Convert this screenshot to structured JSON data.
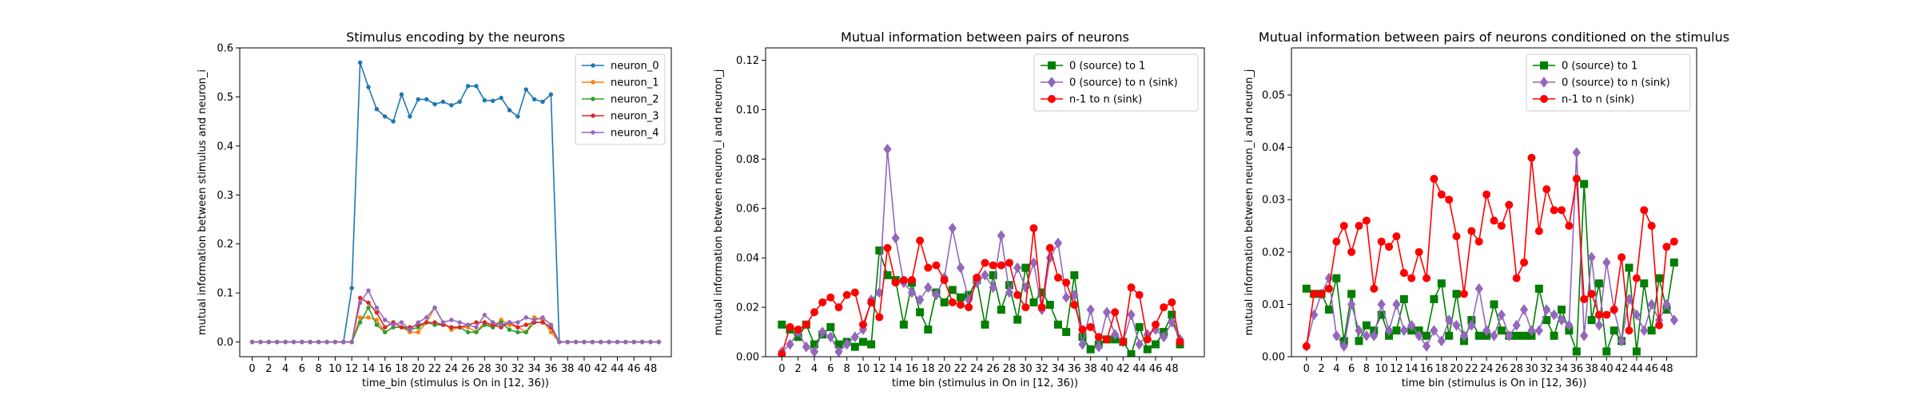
{
  "chart_data": [
    {
      "type": "line",
      "title": "Stimulus encoding by the neurons",
      "xlabel": "time_bin (stimulus is On in [12, 36))",
      "ylabel": "mutual information between stimulus and neuron_i",
      "xlim": [
        -1.5,
        50.5
      ],
      "ylim": [
        -0.03,
        0.6
      ],
      "xticks": [
        0,
        2,
        4,
        6,
        8,
        10,
        12,
        14,
        16,
        18,
        20,
        22,
        24,
        26,
        28,
        30,
        32,
        34,
        36,
        38,
        40,
        42,
        44,
        46,
        48
      ],
      "yticks": [
        0.0,
        0.1,
        0.2,
        0.3,
        0.4,
        0.5,
        0.6
      ],
      "ytick_labels": [
        "0.0",
        "0.1",
        "0.2",
        "0.3",
        "0.4",
        "0.5",
        "0.6"
      ],
      "grid": false,
      "legend_position": "top-right",
      "x": [
        0,
        1,
        2,
        3,
        4,
        5,
        6,
        7,
        8,
        9,
        10,
        11,
        12,
        13,
        14,
        15,
        16,
        17,
        18,
        19,
        20,
        21,
        22,
        23,
        24,
        25,
        26,
        27,
        28,
        29,
        30,
        31,
        32,
        33,
        34,
        35,
        36,
        37,
        38,
        39,
        40,
        41,
        42,
        43,
        44,
        45,
        46,
        47,
        48,
        49
      ],
      "series": [
        {
          "name": "neuron_0",
          "color": "#1f77b4",
          "marker": "point",
          "values": [
            0,
            0,
            0,
            0,
            0,
            0,
            0,
            0,
            0,
            0,
            0,
            0,
            0.11,
            0.57,
            0.52,
            0.475,
            0.46,
            0.45,
            0.505,
            0.46,
            0.495,
            0.495,
            0.485,
            0.49,
            0.483,
            0.49,
            0.522,
            0.522,
            0.493,
            0.492,
            0.498,
            0.473,
            0.46,
            0.515,
            0.495,
            0.49,
            0.505,
            0,
            0,
            0,
            0,
            0,
            0,
            0,
            0,
            0,
            0,
            0,
            0,
            0
          ]
        },
        {
          "name": "neuron_1",
          "color": "#ff7f0e",
          "marker": "point",
          "values": [
            0,
            0,
            0,
            0,
            0,
            0,
            0,
            0,
            0,
            0,
            0,
            0,
            0,
            0.05,
            0.05,
            0.045,
            0.02,
            0.03,
            0.03,
            0.02,
            0.02,
            0.04,
            0.07,
            0.04,
            0.025,
            0.03,
            0.03,
            0.02,
            0.04,
            0.03,
            0.045,
            0.035,
            0.03,
            0.02,
            0.05,
            0.045,
            0.02,
            0,
            0,
            0,
            0,
            0,
            0,
            0,
            0,
            0,
            0,
            0,
            0,
            0
          ]
        },
        {
          "name": "neuron_2",
          "color": "#2ca02c",
          "marker": "point",
          "values": [
            0,
            0,
            0,
            0,
            0,
            0,
            0,
            0,
            0,
            0,
            0,
            0,
            0,
            0.04,
            0.07,
            0.035,
            0.02,
            0.03,
            0.03,
            0.025,
            0.03,
            0.04,
            0.035,
            0.035,
            0.03,
            0.03,
            0.02,
            0.02,
            0.035,
            0.03,
            0.04,
            0.025,
            0.02,
            0.02,
            0.04,
            0.04,
            0.03,
            0,
            0,
            0,
            0,
            0,
            0,
            0,
            0,
            0,
            0,
            0,
            0,
            0
          ]
        },
        {
          "name": "neuron_3",
          "color": "#d62728",
          "marker": "point",
          "values": [
            0,
            0,
            0,
            0,
            0,
            0,
            0,
            0,
            0,
            0,
            0,
            0,
            0,
            0.09,
            0.08,
            0.06,
            0.03,
            0.04,
            0.03,
            0.03,
            0.035,
            0.04,
            0.04,
            0.035,
            0.03,
            0.03,
            0.035,
            0.04,
            0.04,
            0.035,
            0.03,
            0.04,
            0.03,
            0.035,
            0.04,
            0.04,
            0.03,
            0,
            0,
            0,
            0,
            0,
            0,
            0,
            0,
            0,
            0,
            0,
            0,
            0
          ]
        },
        {
          "name": "neuron_4",
          "color": "#9467bd",
          "marker": "point",
          "values": [
            0,
            0,
            0,
            0,
            0,
            0,
            0,
            0,
            0,
            0,
            0,
            0,
            0,
            0.08,
            0.105,
            0.07,
            0.045,
            0.035,
            0.04,
            0.025,
            0.04,
            0.05,
            0.07,
            0.04,
            0.045,
            0.04,
            0.035,
            0.03,
            0.055,
            0.04,
            0.035,
            0.04,
            0.04,
            0.05,
            0.045,
            0.05,
            0.035,
            0,
            0,
            0,
            0,
            0,
            0,
            0,
            0,
            0,
            0,
            0,
            0,
            0
          ]
        }
      ]
    },
    {
      "type": "line",
      "title": "Mutual information between pairs of neurons",
      "xlabel": "time bin (stimulus in On in [12, 36))",
      "ylabel": "mutual information between neuron_i and neuron_j",
      "xlim": [
        -2,
        52
      ],
      "ylim": [
        0,
        0.125
      ],
      "xticks": [
        0,
        2,
        4,
        6,
        8,
        10,
        12,
        14,
        16,
        18,
        20,
        22,
        24,
        26,
        28,
        30,
        32,
        34,
        36,
        38,
        40,
        42,
        44,
        46,
        48
      ],
      "yticks": [
        0.0,
        0.02,
        0.04,
        0.06,
        0.08,
        0.1,
        0.12
      ],
      "ytick_labels": [
        "0.00",
        "0.02",
        "0.04",
        "0.06",
        "0.08",
        "0.10",
        "0.12"
      ],
      "grid": false,
      "legend_position": "top-right",
      "x": [
        0,
        1,
        2,
        3,
        4,
        5,
        6,
        7,
        8,
        9,
        10,
        11,
        12,
        13,
        14,
        15,
        16,
        17,
        18,
        19,
        20,
        21,
        22,
        23,
        24,
        25,
        26,
        27,
        28,
        29,
        30,
        31,
        32,
        33,
        34,
        35,
        36,
        37,
        38,
        39,
        40,
        41,
        42,
        43,
        44,
        45,
        46,
        47,
        48,
        49
      ],
      "series": [
        {
          "name": "0 (source) to 1",
          "color": "#007f00",
          "marker": "square",
          "values": [
            0.013,
            0.011,
            0.008,
            0.013,
            0.005,
            0.009,
            0.012,
            0.005,
            0.006,
            0.004,
            0.006,
            0.005,
            0.043,
            0.033,
            0.031,
            0.013,
            0.03,
            0.018,
            0.011,
            0.026,
            0.022,
            0.027,
            0.024,
            0.025,
            0.031,
            0.013,
            0.033,
            0.019,
            0.029,
            0.015,
            0.036,
            0.022,
            0.026,
            0.021,
            0.013,
            0.01,
            0.033,
            0.008,
            0.003,
            0.005,
            0.007,
            0.007,
            0.006,
            0.001,
            0.012,
            0.003,
            0.005,
            0.01,
            0.017,
            0.005
          ]
        },
        {
          "name": "0 (source) to n (sink)",
          "color": "#9467bd",
          "marker": "diamond",
          "values": [
            0.002,
            0.005,
            0.01,
            0.004,
            0.002,
            0.01,
            0.008,
            0.002,
            0.005,
            0.008,
            0.011,
            0.023,
            0.026,
            0.084,
            0.048,
            0.03,
            0.026,
            0.023,
            0.028,
            0.025,
            0.032,
            0.052,
            0.036,
            0.023,
            0.03,
            0.033,
            0.028,
            0.049,
            0.026,
            0.036,
            0.028,
            0.038,
            0.019,
            0.04,
            0.046,
            0.024,
            0.025,
            0.005,
            0.019,
            0.004,
            0.018,
            0.009,
            0.006,
            0.017,
            0.005,
            0.009,
            0.011,
            0.008,
            0.014,
            0.007
          ]
        },
        {
          "name": "n-1 to n (sink)",
          "color": "#ff0000",
          "marker": "circle",
          "values": [
            0.001,
            0.012,
            0.011,
            0.013,
            0.018,
            0.022,
            0.024,
            0.02,
            0.025,
            0.026,
            0.013,
            0.022,
            0.016,
            0.044,
            0.03,
            0.031,
            0.031,
            0.047,
            0.036,
            0.037,
            0.031,
            0.022,
            0.021,
            0.02,
            0.032,
            0.038,
            0.037,
            0.037,
            0.038,
            0.025,
            0.02,
            0.052,
            0.02,
            0.044,
            0.032,
            0.03,
            0.021,
            0.011,
            0.012,
            0.008,
            0.007,
            0.018,
            0.006,
            0.028,
            0.025,
            0.007,
            0.013,
            0.02,
            0.022,
            0.006
          ]
        }
      ]
    },
    {
      "type": "line",
      "title": "Mutual information between pairs of neurons conditioned on the stimulus",
      "xlabel": "time bin (stimulus is On in [12, 36))",
      "ylabel": "mutual information between neuron_i and neuron_j",
      "xlim": [
        -2,
        52
      ],
      "ylim": [
        0,
        0.059
      ],
      "xticks": [
        0,
        2,
        4,
        6,
        8,
        10,
        12,
        14,
        16,
        18,
        20,
        22,
        24,
        26,
        28,
        30,
        32,
        34,
        36,
        38,
        40,
        42,
        44,
        46,
        48
      ],
      "yticks": [
        0.0,
        0.01,
        0.02,
        0.03,
        0.04,
        0.05
      ],
      "ytick_labels": [
        "0.00",
        "0.01",
        "0.02",
        "0.03",
        "0.04",
        "0.05"
      ],
      "grid": false,
      "legend_position": "top-right",
      "x": [
        0,
        1,
        2,
        3,
        4,
        5,
        6,
        7,
        8,
        9,
        10,
        11,
        12,
        13,
        14,
        15,
        16,
        17,
        18,
        19,
        20,
        21,
        22,
        23,
        24,
        25,
        26,
        27,
        28,
        29,
        30,
        31,
        32,
        33,
        34,
        35,
        36,
        37,
        38,
        39,
        40,
        41,
        42,
        43,
        44,
        45,
        46,
        47,
        48,
        49
      ],
      "series": [
        {
          "name": "0 (source) to 1",
          "color": "#007f00",
          "marker": "square",
          "values": [
            0.013,
            0.012,
            0.012,
            0.009,
            0.015,
            0.003,
            0.012,
            0.003,
            0.006,
            0.005,
            0.008,
            0.004,
            0.005,
            0.011,
            0.005,
            0.005,
            0.004,
            0.011,
            0.014,
            0.004,
            0.012,
            0.003,
            0.007,
            0.004,
            0.004,
            0.01,
            0.005,
            0.004,
            0.004,
            0.004,
            0.004,
            0.013,
            0.007,
            0.004,
            0.009,
            0.005,
            0.001,
            0.033,
            0.007,
            0.014,
            0.001,
            0.005,
            0.003,
            0.017,
            0.001,
            0.014,
            0.005,
            0.015,
            0.009,
            0.018
          ]
        },
        {
          "name": "0 (source) to n (sink)",
          "color": "#9467bd",
          "marker": "diamond",
          "values": [
            0.002,
            0.008,
            0.012,
            0.015,
            0.004,
            0.002,
            0.01,
            0.005,
            0.004,
            0.004,
            0.01,
            0.005,
            0.01,
            0.005,
            0.006,
            0.004,
            0.002,
            0.005,
            0.003,
            0.007,
            0.006,
            0.004,
            0.006,
            0.013,
            0.005,
            0.004,
            0.008,
            0.004,
            0.006,
            0.009,
            0.005,
            0.005,
            0.009,
            0.008,
            0.007,
            0.006,
            0.039,
            0.004,
            0.019,
            0.006,
            0.018,
            0.009,
            0.003,
            0.011,
            0.008,
            0.005,
            0.01,
            0.007,
            0.01,
            0.007
          ]
        },
        {
          "name": "n-1 to n (sink)",
          "color": "#ff0000",
          "marker": "circle",
          "values": [
            0.002,
            0.012,
            0.012,
            0.013,
            0.022,
            0.025,
            0.02,
            0.025,
            0.026,
            0.013,
            0.022,
            0.021,
            0.023,
            0.016,
            0.015,
            0.02,
            0.015,
            0.034,
            0.031,
            0.03,
            0.023,
            0.012,
            0.024,
            0.022,
            0.031,
            0.026,
            0.025,
            0.029,
            0.015,
            0.018,
            0.038,
            0.024,
            0.032,
            0.028,
            0.028,
            0.025,
            0.034,
            0.011,
            0.012,
            0.008,
            0.008,
            0.009,
            0.019,
            0.005,
            0.015,
            0.028,
            0.025,
            0.006,
            0.021,
            0.022
          ]
        }
      ]
    }
  ]
}
